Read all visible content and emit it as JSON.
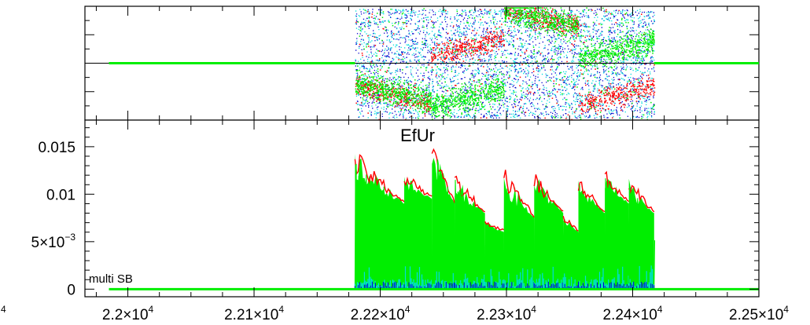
{
  "colors": {
    "red": "#ff0000",
    "green": "#00ee00",
    "blue": "#0000cc",
    "cyan": "#00dddd",
    "axis": "#000000"
  },
  "chart_data": [
    {
      "type": "scatter",
      "title": "",
      "xlim": [
        21966,
        22500
      ],
      "ylim": [
        -1,
        1
      ],
      "grid": false,
      "y_tick_labels_shown": false,
      "series_colors": [
        "#0000cc",
        "#00dddd",
        "#ff0000",
        "#00ee00"
      ],
      "flat_line": {
        "value": 0,
        "x_range": [
          21985,
          22500
        ],
        "color": "#00ee00"
      },
      "segments": [
        {
          "x": [
            22180,
            22240
          ],
          "red_mean": -0.55,
          "green_mean": -0.5
        },
        {
          "x": [
            22240,
            22298
          ],
          "red_mean": 0.3,
          "green_mean": -0.6
        },
        {
          "x": [
            22298,
            22357
          ],
          "red_mean": 0.8,
          "green_mean": 0.8
        },
        {
          "x": [
            22357,
            22417
          ],
          "red_mean": -0.55,
          "green_mean": 0.25
        }
      ]
    },
    {
      "type": "line",
      "title": "EfUr",
      "annotation": "multi SB",
      "xlim": [
        21966,
        22500
      ],
      "ylim": [
        -0.0008,
        0.0178
      ],
      "y_ticks": [
        {
          "value": 0.015,
          "label": "0.015"
        },
        {
          "value": 0.01,
          "label": "0.01"
        },
        {
          "value": 0.005,
          "base": "5×10",
          "exp": "−3"
        },
        {
          "value": 0,
          "label": "0"
        }
      ],
      "x_ticks": [
        {
          "value": 21950,
          "base": "",
          "exp": "4"
        },
        {
          "value": 22000,
          "base": "2.2×10",
          "exp": "4"
        },
        {
          "value": 22100,
          "base": "2.21×10",
          "exp": "4"
        },
        {
          "value": 22200,
          "base": "2.22×10",
          "exp": "4"
        },
        {
          "value": 22300,
          "base": "2.23×10",
          "exp": "4"
        },
        {
          "value": 22400,
          "base": "2.24×10",
          "exp": "4"
        },
        {
          "value": 22500,
          "base": "2.25×10",
          "exp": "4"
        }
      ],
      "series": [
        {
          "color": "#0000cc",
          "peak": 0.0008
        },
        {
          "color": "#00dddd",
          "peak": 0.0025
        },
        {
          "color": "#ff0000",
          "peak": 0.0158
        },
        {
          "color": "#00ee00",
          "peak": 0.0153
        }
      ],
      "segments": [
        {
          "x": [
            22180,
            22219
          ],
          "max": 0.0145,
          "min": 0.009
        },
        {
          "x": [
            22219,
            22241
          ],
          "max": 0.0122,
          "min": 0.0095
        },
        {
          "x": [
            22241,
            22259
          ],
          "max": 0.0158,
          "min": 0.009
        },
        {
          "x": [
            22259,
            22283
          ],
          "max": 0.0122,
          "min": 0.008
        },
        {
          "x": [
            22283,
            22298
          ],
          "max": 0.0072,
          "min": 0.006
        },
        {
          "x": [
            22298,
            22322
          ],
          "max": 0.0128,
          "min": 0.0075
        },
        {
          "x": [
            22322,
            22345
          ],
          "max": 0.0125,
          "min": 0.008
        },
        {
          "x": [
            22345,
            22357
          ],
          "max": 0.0078,
          "min": 0.006
        },
        {
          "x": [
            22357,
            22378
          ],
          "max": 0.0118,
          "min": 0.008
        },
        {
          "x": [
            22378,
            22397
          ],
          "max": 0.0125,
          "min": 0.009
        },
        {
          "x": [
            22397,
            22417
          ],
          "max": 0.0118,
          "min": 0.008
        }
      ],
      "baseline": {
        "value": 0,
        "x_range": [
          21985,
          22500
        ],
        "color": "#00ee00"
      }
    }
  ]
}
